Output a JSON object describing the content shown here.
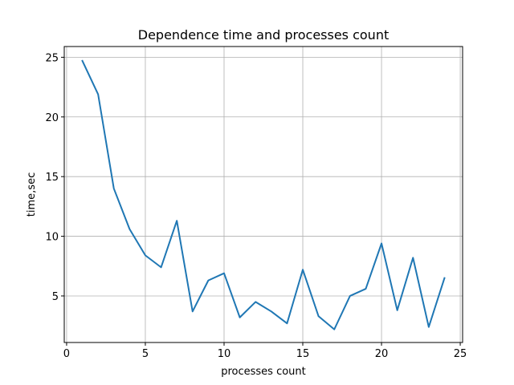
{
  "chart_data": {
    "type": "line",
    "title": "Dependence time and processes count",
    "xlabel": "processes count",
    "ylabel": "time,sec",
    "xlim": [
      -0.15,
      25.15
    ],
    "ylim": [
      1.1,
      25.9
    ],
    "xticks": [
      0,
      5,
      10,
      15,
      20,
      25
    ],
    "yticks": [
      5,
      10,
      15,
      20,
      25
    ],
    "grid": true,
    "line_color": "#1f77b4",
    "series": [
      {
        "x": [
          1,
          2,
          3,
          4,
          5,
          6,
          7,
          8,
          9,
          10,
          11,
          12,
          13,
          14,
          15,
          16,
          17,
          18,
          19,
          20,
          21,
          22,
          23,
          24
        ],
        "values": [
          24.7,
          21.9,
          14.0,
          10.6,
          8.4,
          7.4,
          11.3,
          3.7,
          6.3,
          6.9,
          3.2,
          4.5,
          3.7,
          2.7,
          7.2,
          3.3,
          2.2,
          5.0,
          5.6,
          9.4,
          3.8,
          8.2,
          2.4,
          6.5
        ]
      }
    ]
  }
}
